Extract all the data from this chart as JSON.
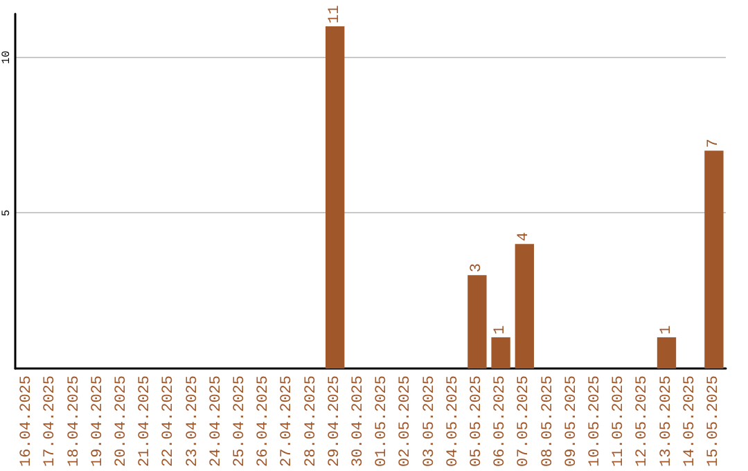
{
  "chart_data": {
    "type": "bar",
    "categories": [
      "16.04.2025",
      "17.04.2025",
      "18.04.2025",
      "19.04.2025",
      "20.04.2025",
      "21.04.2025",
      "22.04.2025",
      "23.04.2025",
      "24.04.2025",
      "25.04.2025",
      "26.04.2025",
      "27.04.2025",
      "28.04.2025",
      "29.04.2025",
      "30.04.2025",
      "01.05.2025",
      "02.05.2025",
      "03.05.2025",
      "04.05.2025",
      "05.05.2025",
      "06.05.2025",
      "07.05.2025",
      "08.05.2025",
      "09.05.2025",
      "10.05.2025",
      "11.05.2025",
      "12.05.2025",
      "13.05.2025",
      "14.05.2025",
      "15.05.2025"
    ],
    "values": [
      0,
      0,
      0,
      0,
      0,
      0,
      0,
      0,
      0,
      0,
      0,
      0,
      0,
      11,
      0,
      0,
      0,
      0,
      0,
      3,
      1,
      4,
      0,
      0,
      0,
      0,
      0,
      1,
      0,
      7
    ],
    "value_labels": [
      null,
      null,
      null,
      null,
      null,
      null,
      null,
      null,
      null,
      null,
      null,
      null,
      null,
      "11",
      null,
      null,
      null,
      null,
      null,
      "3",
      "1",
      "4",
      null,
      null,
      null,
      null,
      null,
      "1",
      null,
      "7"
    ],
    "color": "#a0572a",
    "ylim": [
      0,
      11.4
    ],
    "yticks": [
      5,
      10
    ],
    "grid": "y"
  }
}
